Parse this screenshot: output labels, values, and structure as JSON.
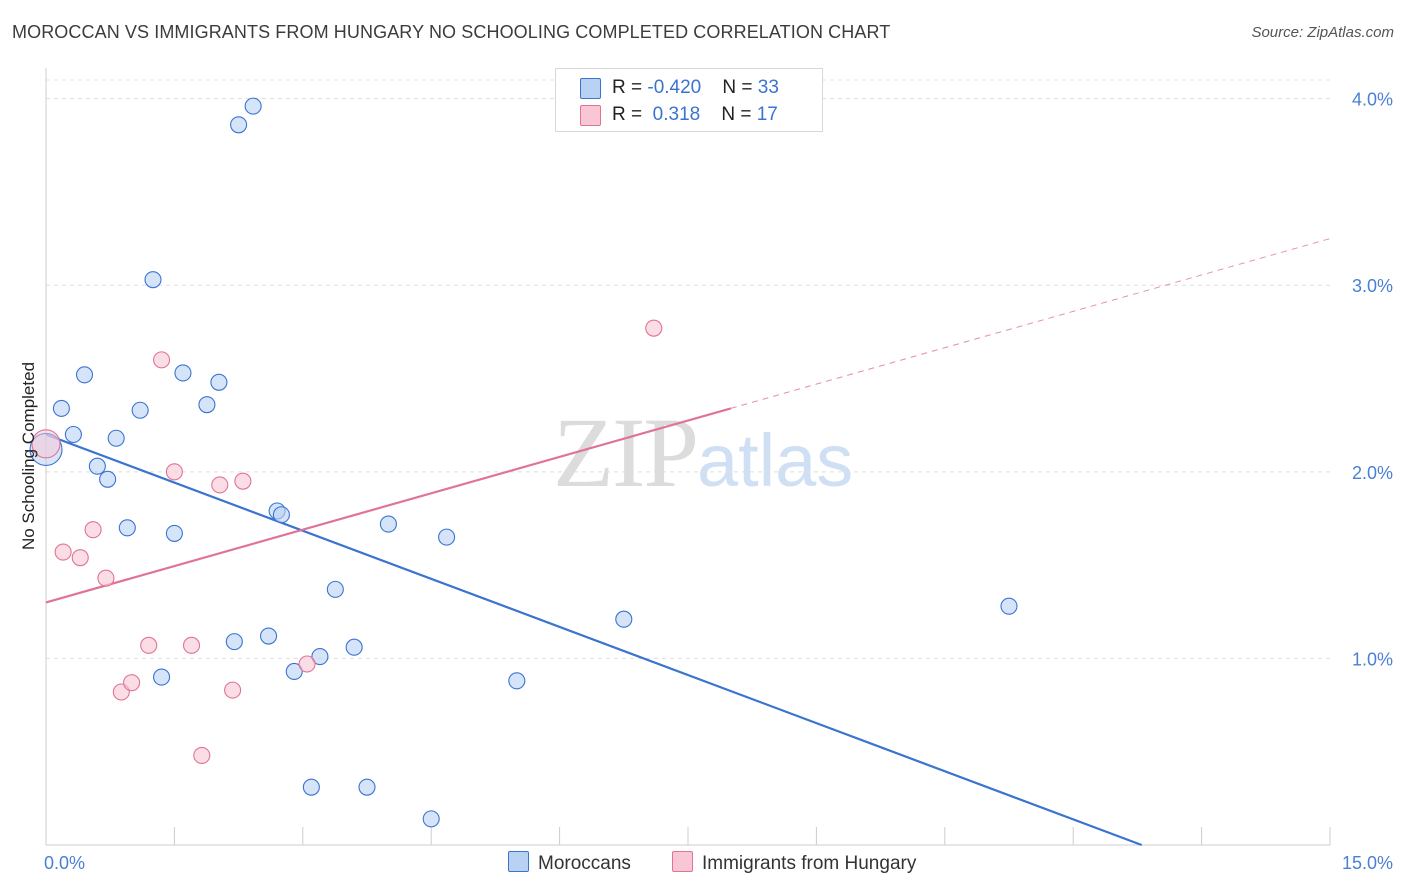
{
  "title": "MOROCCAN VS IMMIGRANTS FROM HUNGARY NO SCHOOLING COMPLETED CORRELATION CHART",
  "source": "Source: ZipAtlas.com",
  "watermark": {
    "zip": "ZIP",
    "atlas": "atlas"
  },
  "legend": {
    "moroccans": {
      "r_label": "R = ",
      "r_value": "-0.420",
      "n_label": "N = ",
      "n_value": "33"
    },
    "hungary": {
      "r_label": "R = ",
      "r_value": " 0.318",
      "n_label": "N = ",
      "n_value": "17"
    }
  },
  "bottom_legend": {
    "moroccans": "Moroccans",
    "hungary": "Immigrants from Hungary"
  },
  "chart_data": {
    "type": "scatter",
    "title": "MOROCCAN VS IMMIGRANTS FROM HUNGARY NO SCHOOLING COMPLETED CORRELATION CHART",
    "xlabel": "",
    "ylabel": "No Schooling Completed",
    "xlim": [
      0,
      15
    ],
    "ylim": [
      0,
      4.1
    ],
    "x_tick_labels": [
      "0.0%",
      "15.0%"
    ],
    "y_ticks": [
      1,
      2,
      3,
      4
    ],
    "y_tick_labels": [
      "1.0%",
      "2.0%",
      "3.0%",
      "4.0%"
    ],
    "grid": true,
    "colors": {
      "moroccans": "#3a74d1",
      "moroccans_fill": "#b9d2f3",
      "hungary": "#e07396",
      "hungary_fill": "#f8c6d5"
    },
    "series": [
      {
        "name": "Moroccans",
        "points": [
          [
            0.0,
            2.12
          ],
          [
            0.18,
            2.34
          ],
          [
            0.32,
            2.2
          ],
          [
            0.45,
            2.52
          ],
          [
            0.6,
            2.03
          ],
          [
            0.72,
            1.96
          ],
          [
            0.82,
            2.18
          ],
          [
            0.95,
            1.7
          ],
          [
            1.1,
            2.33
          ],
          [
            1.25,
            3.03
          ],
          [
            1.35,
            0.9
          ],
          [
            1.5,
            1.67
          ],
          [
            1.6,
            2.53
          ],
          [
            1.88,
            2.36
          ],
          [
            2.02,
            2.48
          ],
          [
            2.2,
            1.09
          ],
          [
            2.25,
            3.86
          ],
          [
            2.42,
            3.96
          ],
          [
            2.6,
            1.12
          ],
          [
            2.7,
            1.79
          ],
          [
            2.75,
            1.77
          ],
          [
            2.9,
            0.93
          ],
          [
            3.1,
            0.31
          ],
          [
            3.2,
            1.01
          ],
          [
            3.38,
            1.37
          ],
          [
            3.6,
            1.06
          ],
          [
            3.75,
            0.31
          ],
          [
            4.0,
            1.72
          ],
          [
            4.5,
            0.14
          ],
          [
            4.68,
            1.65
          ],
          [
            5.5,
            0.88
          ],
          [
            6.75,
            1.21
          ],
          [
            11.25,
            1.28
          ]
        ],
        "trend": {
          "x": [
            0,
            12.8
          ],
          "y": [
            2.2,
            0.0
          ]
        }
      },
      {
        "name": "Immigrants from Hungary",
        "points": [
          [
            0.0,
            2.15
          ],
          [
            0.2,
            1.57
          ],
          [
            0.4,
            1.54
          ],
          [
            0.55,
            1.69
          ],
          [
            0.7,
            1.43
          ],
          [
            0.88,
            0.82
          ],
          [
            1.0,
            0.87
          ],
          [
            1.2,
            1.07
          ],
          [
            1.35,
            2.6
          ],
          [
            1.5,
            2.0
          ],
          [
            1.7,
            1.07
          ],
          [
            1.82,
            0.48
          ],
          [
            2.03,
            1.93
          ],
          [
            2.18,
            0.83
          ],
          [
            2.3,
            1.95
          ],
          [
            3.05,
            0.97
          ],
          [
            7.1,
            2.77
          ]
        ],
        "trend": {
          "x": [
            0,
            8.0
          ],
          "y": [
            1.3,
            2.34
          ]
        },
        "trend_extension": {
          "x": [
            8.0,
            15.0
          ],
          "y": [
            2.34,
            3.25
          ]
        }
      }
    ]
  }
}
